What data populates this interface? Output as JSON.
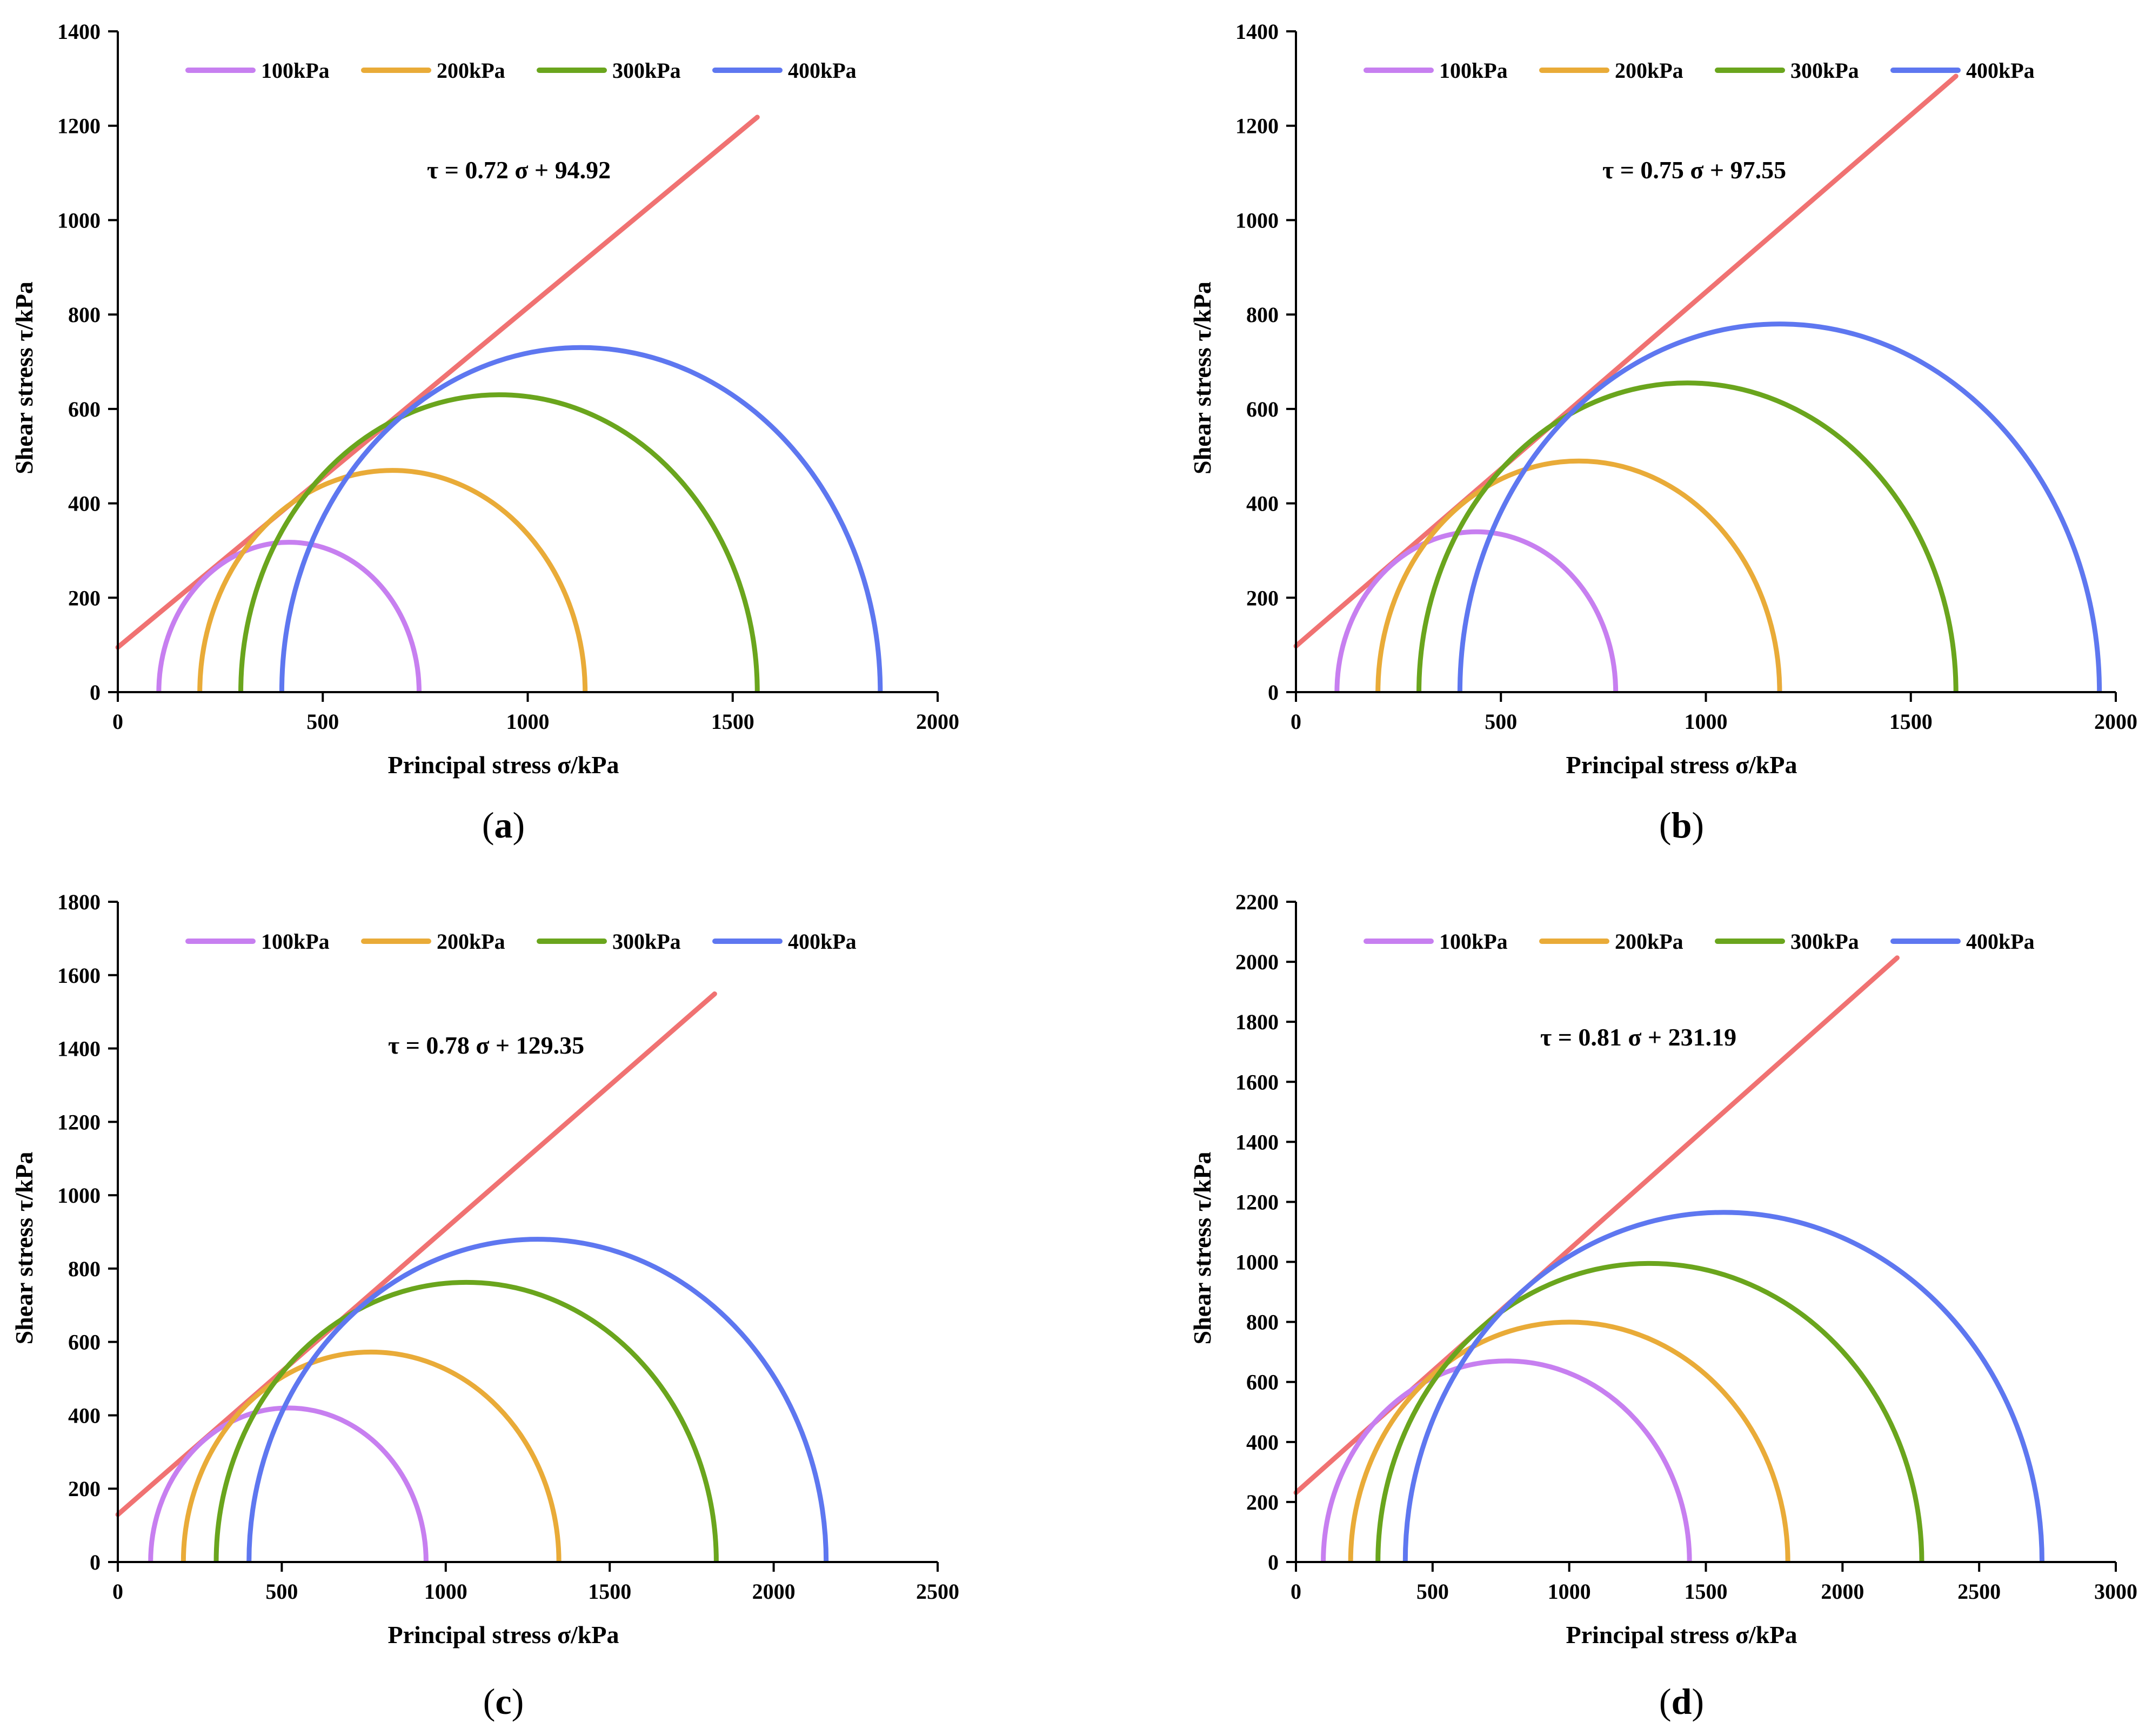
{
  "chart_data": [
    {
      "panel": "a",
      "panel_label_open": "(",
      "panel_label_letter": "a",
      "panel_label_close": ")",
      "type": "line",
      "xlabel": "Principal stress σ/kPa",
      "ylabel": "Shear stress τ/kPa",
      "xlim": [
        0,
        2000
      ],
      "ylim": [
        0,
        1400
      ],
      "xticks": [
        0,
        500,
        1000,
        1500,
        2000
      ],
      "yticks": [
        0,
        200,
        400,
        600,
        800,
        1000,
        1200,
        1400
      ],
      "legend": [
        "100kPa",
        "200kPa",
        "300kPa",
        "400kPa"
      ],
      "series_colors": [
        "#c77ff0",
        "#e9ab38",
        "#6aa51d",
        "#5e77f0"
      ],
      "envelope_color": "#f07272",
      "circles": [
        {
          "name": "100kPa",
          "sigma3": 100,
          "sigma1": 735
        },
        {
          "name": "200kPa",
          "sigma3": 200,
          "sigma1": 1140
        },
        {
          "name": "300kPa",
          "sigma3": 300,
          "sigma1": 1560
        },
        {
          "name": "400kPa",
          "sigma3": 400,
          "sigma1": 1860
        }
      ],
      "envelope": {
        "slope": 0.72,
        "intercept": 94.92,
        "x_end": 1560
      },
      "equation": "τ = 0.72 σ + 94.92"
    },
    {
      "panel": "b",
      "panel_label_open": "(",
      "panel_label_letter": "b",
      "panel_label_close": ")",
      "type": "line",
      "xlabel": "Principal stress σ/kPa",
      "ylabel": "Shear stress τ/kPa",
      "xlim": [
        0,
        2000
      ],
      "ylim": [
        0,
        1400
      ],
      "xticks": [
        0,
        500,
        1000,
        1500,
        2000
      ],
      "yticks": [
        0,
        200,
        400,
        600,
        800,
        1000,
        1200,
        1400
      ],
      "legend": [
        "100kPa",
        "200kPa",
        "300kPa",
        "400kPa"
      ],
      "series_colors": [
        "#c77ff0",
        "#e9ab38",
        "#6aa51d",
        "#5e77f0"
      ],
      "envelope_color": "#f07272",
      "circles": [
        {
          "name": "100kPa",
          "sigma3": 100,
          "sigma1": 780
        },
        {
          "name": "200kPa",
          "sigma3": 200,
          "sigma1": 1180
        },
        {
          "name": "300kPa",
          "sigma3": 300,
          "sigma1": 1610
        },
        {
          "name": "400kPa",
          "sigma3": 400,
          "sigma1": 1960
        }
      ],
      "envelope": {
        "slope": 0.75,
        "intercept": 97.55,
        "x_end": 1610
      },
      "equation": "τ = 0.75 σ + 97.55"
    },
    {
      "panel": "c",
      "panel_label_open": "(",
      "panel_label_letter": "c",
      "panel_label_close": ")",
      "type": "line",
      "xlabel": "Principal stress σ/kPa",
      "ylabel": "Shear stress τ/kPa",
      "xlim": [
        0,
        2500
      ],
      "ylim": [
        0,
        1800
      ],
      "xticks": [
        0,
        500,
        1000,
        1500,
        2000,
        2500
      ],
      "yticks": [
        0,
        200,
        400,
        600,
        800,
        1000,
        1200,
        1400,
        1600,
        1800
      ],
      "legend": [
        "100kPa",
        "200kPa",
        "300kPa",
        "400kPa"
      ],
      "series_colors": [
        "#c77ff0",
        "#e9ab38",
        "#6aa51d",
        "#5e77f0"
      ],
      "envelope_color": "#f07272",
      "circles": [
        {
          "name": "100kPa",
          "sigma3": 100,
          "sigma1": 940
        },
        {
          "name": "200kPa",
          "sigma3": 200,
          "sigma1": 1345
        },
        {
          "name": "300kPa",
          "sigma3": 300,
          "sigma1": 1825
        },
        {
          "name": "400kPa",
          "sigma3": 400,
          "sigma1": 2160
        }
      ],
      "envelope": {
        "slope": 0.78,
        "intercept": 129.35,
        "x_end": 1820
      },
      "equation": "τ = 0.78 σ + 129.35"
    },
    {
      "panel": "d",
      "panel_label_open": "(",
      "panel_label_letter": "d",
      "panel_label_close": ")",
      "type": "line",
      "xlabel": "Principal stress σ/kPa",
      "ylabel": "Shear stress τ/kPa",
      "xlim": [
        0,
        3000
      ],
      "ylim": [
        0,
        2200
      ],
      "xticks": [
        0,
        500,
        1000,
        1500,
        2000,
        2500,
        3000
      ],
      "yticks": [
        0,
        200,
        400,
        600,
        800,
        1000,
        1200,
        1400,
        1600,
        1800,
        2000,
        2200
      ],
      "legend": [
        "100kPa",
        "200kPa",
        "300kPa",
        "400kPa"
      ],
      "series_colors": [
        "#c77ff0",
        "#e9ab38",
        "#6aa51d",
        "#5e77f0"
      ],
      "envelope_color": "#f07272",
      "circles": [
        {
          "name": "100kPa",
          "sigma3": 100,
          "sigma1": 1440
        },
        {
          "name": "200kPa",
          "sigma3": 200,
          "sigma1": 1800
        },
        {
          "name": "300kPa",
          "sigma3": 300,
          "sigma1": 2290
        },
        {
          "name": "400kPa",
          "sigma3": 400,
          "sigma1": 2730
        }
      ],
      "envelope": {
        "slope": 0.81,
        "intercept": 231.19,
        "x_end": 2200
      },
      "equation": "τ = 0.81 σ + 231.19"
    }
  ]
}
